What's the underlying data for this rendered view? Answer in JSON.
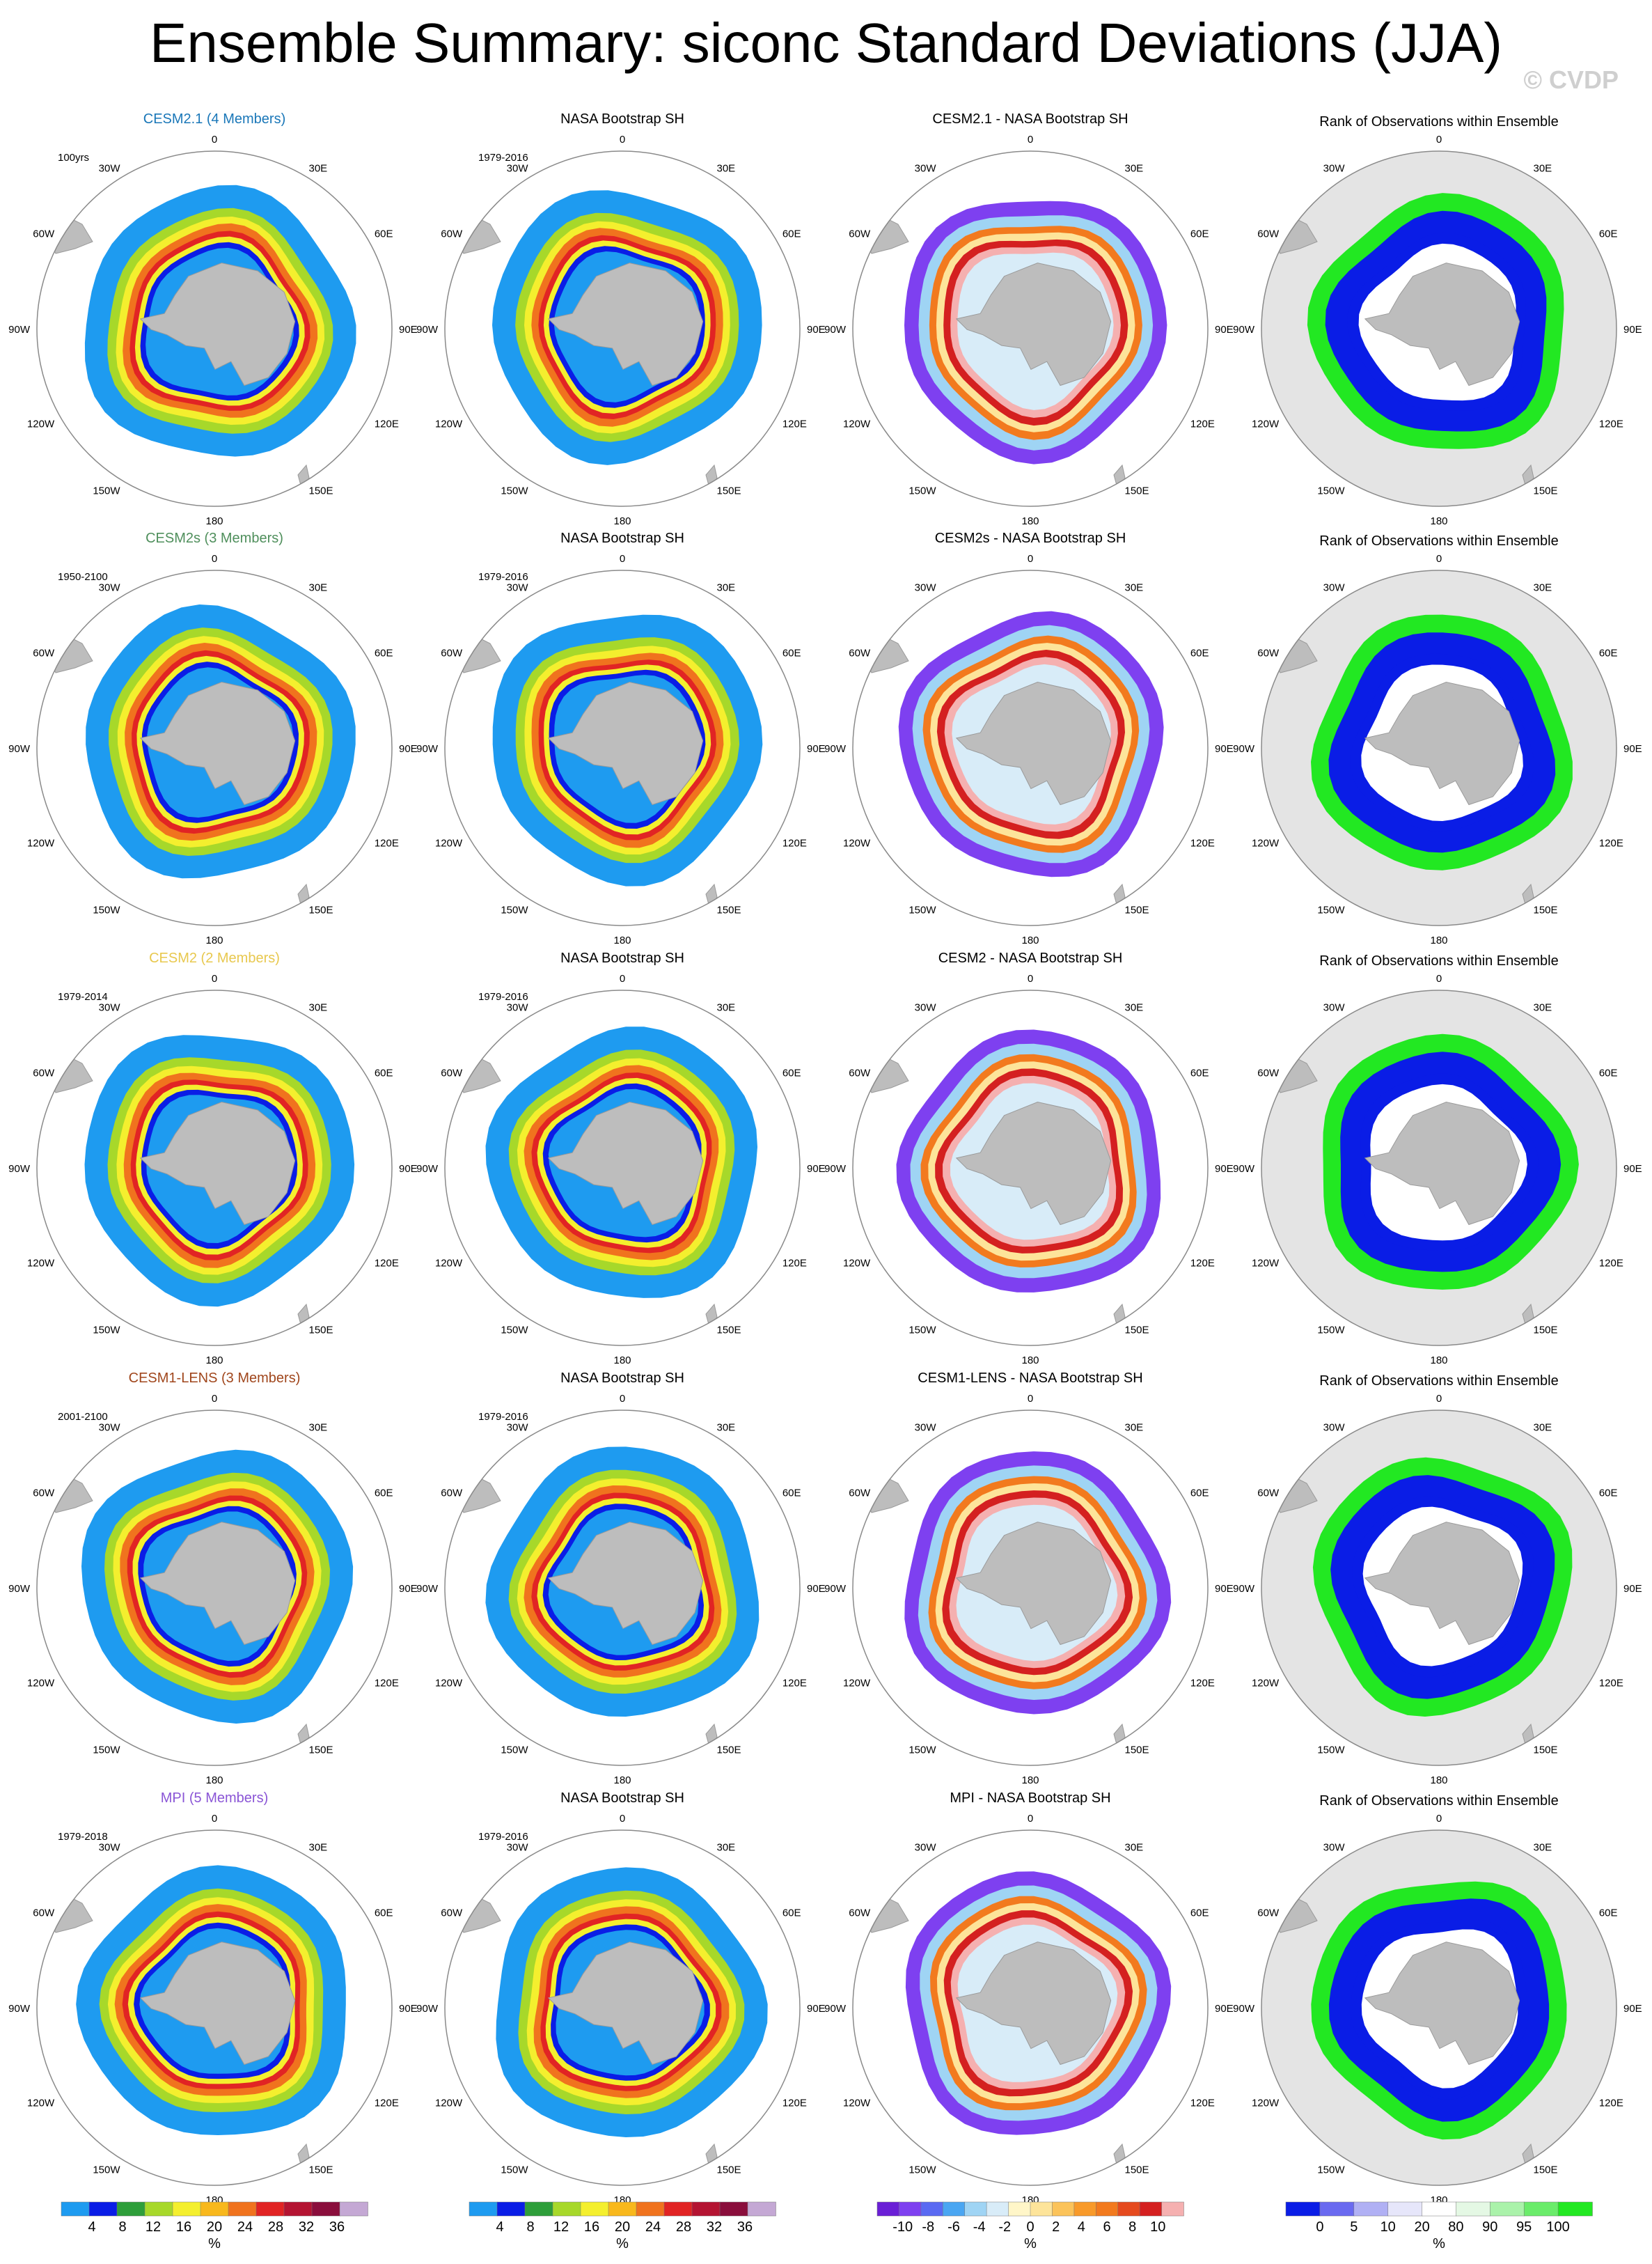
{
  "title": "Ensemble Summary: siconc Standard Deviations (JJA)",
  "watermark": "© CVDP",
  "columns": [
    "model",
    "observations",
    "difference",
    "rank"
  ],
  "colors": {
    "land": "#bdbdbd",
    "ocean": "#ffffff",
    "rank_background": "#e4e4e4",
    "circle_stroke": "#8a8a8a"
  },
  "rows": [
    {
      "model_title": "CESM2.1 (4 Members)",
      "model_color": "#1a77b8",
      "model_period": "100yrs",
      "obs_title": "NASA Bootstrap SH",
      "obs_period": "1979-2016",
      "diff_title": "CESM2.1 - NASA Bootstrap SH",
      "rank_title": "Rank of Observations within Ensemble"
    },
    {
      "model_title": "CESM2s (3 Members)",
      "model_color": "#4f8f5c",
      "model_period": "1950-2100",
      "obs_title": "NASA Bootstrap SH",
      "obs_period": "1979-2016",
      "diff_title": "CESM2s - NASA Bootstrap SH",
      "rank_title": "Rank of Observations within Ensemble"
    },
    {
      "model_title": "CESM2 (2 Members)",
      "model_color": "#e8c84e",
      "model_period": "1979-2014",
      "obs_title": "NASA Bootstrap SH",
      "obs_period": "1979-2016",
      "diff_title": "CESM2 - NASA Bootstrap SH",
      "rank_title": "Rank of Observations within Ensemble"
    },
    {
      "model_title": "CESM1-LENS (3 Members)",
      "model_color": "#a0461c",
      "model_period": "2001-2100",
      "obs_title": "NASA Bootstrap SH",
      "obs_period": "1979-2016",
      "diff_title": "CESM1-LENS - NASA Bootstrap SH",
      "rank_title": "Rank of Observations within Ensemble"
    },
    {
      "model_title": "MPI (5 Members)",
      "model_color": "#8a55d6",
      "model_period": "1979-2018",
      "obs_title": "NASA Bootstrap SH",
      "obs_period": "1979-2016",
      "diff_title": "MPI - NASA Bootstrap SH",
      "rank_title": "Rank of Observations within Ensemble"
    }
  ],
  "map_labels": {
    "lon_top": "0",
    "lon_bottom": "180",
    "lon_30w": "30W",
    "lon_30e": "30E",
    "lon_60w": "60W",
    "lon_60e": "60E",
    "lon_90w": "90W",
    "lon_90e": "90E",
    "lon_120w": "120W",
    "lon_120e": "120E",
    "lon_150w": "150W",
    "lon_150e": "150E"
  },
  "colorbars": [
    {
      "name": "std-dev",
      "unit": "%",
      "labels": [
        "4",
        "8",
        "12",
        "16",
        "20",
        "24",
        "28",
        "32",
        "36"
      ],
      "colors": [
        "#1e9bf0",
        "#0a1de6",
        "#2e9e3a",
        "#a7d82a",
        "#f4ef2e",
        "#f8b81c",
        "#f0731e",
        "#e12424",
        "#b41432",
        "#8a0e3c",
        "#c4a8d4"
      ]
    },
    {
      "name": "std-dev-obs",
      "unit": "%",
      "labels": [
        "4",
        "8",
        "12",
        "16",
        "20",
        "24",
        "28",
        "32",
        "36"
      ],
      "colors": [
        "#1e9bf0",
        "#0a1de6",
        "#2e9e3a",
        "#a7d82a",
        "#f4ef2e",
        "#f8b81c",
        "#f0731e",
        "#e12424",
        "#b41432",
        "#8a0e3c",
        "#c4a8d4"
      ]
    },
    {
      "name": "difference",
      "unit": "%",
      "labels": [
        "-10",
        "-8",
        "-6",
        "-4",
        "-2",
        "0",
        "2",
        "4",
        "6",
        "8",
        "10"
      ],
      "colors": [
        "#6a1fd6",
        "#7e40f0",
        "#5a6af2",
        "#4aa6f2",
        "#9fd4f4",
        "#d8ecf8",
        "#fff6c8",
        "#fde49a",
        "#fbc35a",
        "#f89a2a",
        "#f27a1e",
        "#e54a1e",
        "#d42020",
        "#f5b0b0"
      ]
    },
    {
      "name": "rank",
      "unit": "%",
      "labels": [
        "0",
        "5",
        "10",
        "20",
        "80",
        "90",
        "95",
        "100"
      ],
      "colors": [
        "#0a1de6",
        "#6a6af0",
        "#b0b0f4",
        "#e6e6fa",
        "#ffffff",
        "#e4f8e4",
        "#aaf2aa",
        "#6aec6a",
        "#22e822"
      ]
    }
  ]
}
